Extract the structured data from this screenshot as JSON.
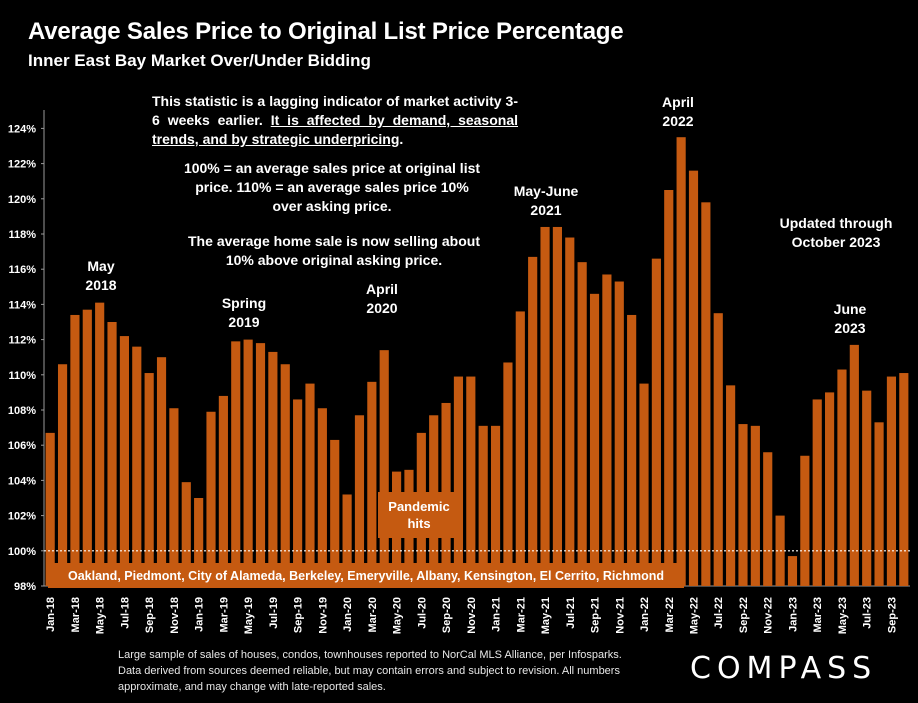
{
  "header": {
    "title": "Average Sales Price to Original List Price Percentage",
    "subtitle": "Inner East Bay Market Over/Under Bidding"
  },
  "notes": {
    "lagging_1": "This statistic is a lagging indicator of market activity 3-6 weeks earlier.",
    "lagging_2": "It is affected by demand, seasonal trends, and by strategic underpricing",
    "definition": "100% = an average sales price at original list price. 110% = an average sales price 10% over asking price.",
    "current": "The average home sale is now selling about 10% above original asking price.",
    "updated": "Updated through October 2023"
  },
  "footer": {
    "source": "Large sample of sales of houses, condos, townhouses reported to NorCal MLS Alliance, per Infosparks. Data derived from sources deemed reliable, but may contain errors and subject to revision. All numbers approximate, and may change with late-reported sales.",
    "logo": "COMPASS"
  },
  "chart_data": {
    "type": "bar",
    "title": "Average Sales Price to Original List Price Percentage",
    "ylim": [
      98,
      125
    ],
    "yticks": [
      "98%",
      "100%",
      "102%",
      "104%",
      "106%",
      "108%",
      "110%",
      "112%",
      "114%",
      "116%",
      "118%",
      "120%",
      "122%",
      "124%"
    ],
    "reference_line": 100,
    "bar_color": "#c55a11",
    "categories": [
      "Jan-18",
      "Feb-18",
      "Mar-18",
      "Apr-18",
      "May-18",
      "Jun-18",
      "Jul-18",
      "Aug-18",
      "Sep-18",
      "Oct-18",
      "Nov-18",
      "Dec-18",
      "Jan-19",
      "Feb-19",
      "Mar-19",
      "Apr-19",
      "May-19",
      "Jun-19",
      "Jul-19",
      "Aug-19",
      "Sep-19",
      "Oct-19",
      "Nov-19",
      "Dec-19",
      "Jan-20",
      "Feb-20",
      "Mar-20",
      "Apr-20",
      "May-20",
      "Jun-20",
      "Jul-20",
      "Aug-20",
      "Sep-20",
      "Oct-20",
      "Nov-20",
      "Dec-20",
      "Jan-21",
      "Feb-21",
      "Mar-21",
      "Apr-21",
      "May-21",
      "Jun-21",
      "Jul-21",
      "Aug-21",
      "Sep-21",
      "Oct-21",
      "Nov-21",
      "Dec-21",
      "Jan-22",
      "Feb-22",
      "Mar-22",
      "Apr-22",
      "May-22",
      "Jun-22",
      "Jul-22",
      "Aug-22",
      "Sep-22",
      "Oct-22",
      "Nov-22",
      "Dec-22",
      "Jan-23",
      "Feb-23",
      "Mar-23",
      "Apr-23",
      "May-23",
      "Jun-23",
      "Jul-23",
      "Aug-23",
      "Sep-23",
      "Oct-23"
    ],
    "xticklabels": [
      "Jan-18",
      "Mar-18",
      "May-18",
      "Jul-18",
      "Sep-18",
      "Nov-18",
      "Jan-19",
      "Mar-19",
      "May-19",
      "Jul-19",
      "Sep-19",
      "Nov-19",
      "Jan-20",
      "Mar-20",
      "May-20",
      "Jul-20",
      "Sep-20",
      "Nov-20",
      "Jan-21",
      "Mar-21",
      "May-21",
      "Jul-21",
      "Sep-21",
      "Nov-21",
      "Jan-22",
      "Mar-22",
      "May-22",
      "Jul-22",
      "Sep-22",
      "Nov-22",
      "Jan-23",
      "Mar-23",
      "May-23",
      "Jul-23",
      "Sep-23"
    ],
    "values": [
      106.7,
      110.6,
      113.4,
      113.7,
      114.1,
      113.0,
      112.2,
      111.6,
      110.1,
      111.0,
      108.1,
      103.9,
      103.0,
      107.9,
      108.8,
      111.9,
      112.0,
      111.8,
      111.3,
      110.6,
      108.6,
      109.5,
      108.1,
      106.3,
      103.2,
      107.7,
      109.6,
      111.4,
      104.5,
      104.6,
      106.7,
      107.7,
      108.4,
      109.9,
      109.9,
      107.1,
      107.1,
      110.7,
      113.6,
      116.7,
      118.4,
      118.4,
      117.8,
      116.4,
      114.6,
      115.7,
      115.3,
      113.4,
      109.5,
      116.6,
      120.5,
      123.5,
      121.6,
      119.8,
      113.5,
      109.4,
      107.2,
      107.1,
      105.6,
      102.0,
      99.7,
      105.4,
      108.6,
      109.0,
      110.3,
      111.7,
      109.1,
      107.3,
      109.9,
      110.1
    ],
    "annotations": [
      {
        "text": "May 2018",
        "index": 4,
        "value": 114.1
      },
      {
        "text": "Spring 2019",
        "index": 16,
        "value": 112.0
      },
      {
        "text": "April 2020",
        "index": 27,
        "value": 111.4
      },
      {
        "text": "May-June 2021",
        "index": 40,
        "value": 118.4
      },
      {
        "text": "April 2022",
        "index": 51,
        "value": 123.5
      },
      {
        "text": "June 2023",
        "index": 65,
        "value": 111.7
      }
    ],
    "annotation_lines": {
      "May 2018": [
        "May",
        "2018"
      ],
      "Spring 2019": [
        "Spring",
        "2019"
      ],
      "April 2020": [
        "April",
        "2020"
      ],
      "May-June 2021": [
        "May-June",
        "2021"
      ],
      "April 2022": [
        "April",
        "2022"
      ],
      "June 2023": [
        "June",
        "2023"
      ]
    },
    "callout": {
      "text": "Pandemic hits",
      "lines": [
        "Pandemic",
        "hits"
      ],
      "color": "#c55a11"
    },
    "banner": {
      "text": "Oakland, Piedmont, City of Alameda, Berkeley, Emeryville, Albany, Kensington, El Cerrito, Richmond",
      "color": "#c55a11"
    }
  }
}
